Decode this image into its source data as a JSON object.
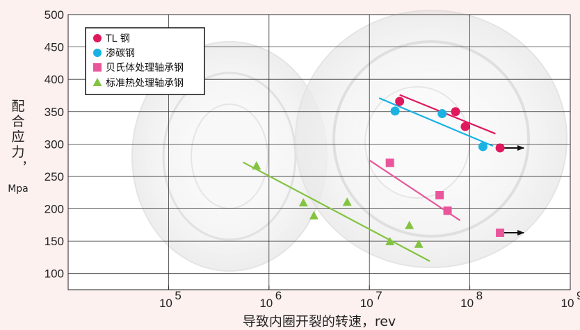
{
  "chart_data": {
    "type": "scatter",
    "title": "",
    "xlabel": "导致内圈开裂的转速，rev",
    "ylabel_chars": [
      "配",
      "合",
      "应",
      "力",
      "，"
    ],
    "ylabel_unit": "Mpa",
    "xscale": "log",
    "xlim": [
      10000,
      1000000000
    ],
    "ylim": [
      75,
      500
    ],
    "yticks": [
      100,
      150,
      200,
      250,
      300,
      350,
      400,
      450,
      500
    ],
    "xticks": [
      {
        "value": 100000,
        "base": "10",
        "exp": "5"
      },
      {
        "value": 1000000,
        "base": "10",
        "exp": "6"
      },
      {
        "value": 10000000,
        "base": "10",
        "exp": "7"
      },
      {
        "value": 100000000,
        "base": "10",
        "exp": "8"
      },
      {
        "value": 1000000000,
        "base": "10",
        "exp": "9"
      }
    ],
    "grid": true,
    "legend_position": "top-left",
    "series": [
      {
        "name": "TL 钢",
        "marker": "circle",
        "color": "#e0185e",
        "points": [
          [
            20000000,
            366
          ],
          [
            72000000,
            350
          ],
          [
            90000000,
            327
          ],
          [
            200000000,
            294
          ]
        ],
        "fit_line": [
          [
            20000000,
            376
          ],
          [
            180000000,
            316
          ]
        ],
        "runout": [
          [
            200000000,
            294
          ]
        ]
      },
      {
        "name": "渗碳钢",
        "marker": "circle",
        "color": "#19b2e3",
        "points": [
          [
            18000000,
            351
          ],
          [
            53000000,
            347
          ],
          [
            135000000,
            296
          ]
        ],
        "fit_line": [
          [
            12500000,
            371
          ],
          [
            170000000,
            297
          ]
        ],
        "runout": []
      },
      {
        "name": "贝氏体处理轴承钢",
        "marker": "square",
        "color": "#ea569b",
        "points": [
          [
            16000000,
            271
          ],
          [
            50000000,
            221
          ],
          [
            60000000,
            197
          ],
          [
            200000000,
            163
          ]
        ],
        "fit_line": [
          [
            10000000,
            275
          ],
          [
            80000000,
            182
          ]
        ],
        "runout": [
          [
            200000000,
            163
          ]
        ]
      },
      {
        "name": "标准热处理轴承钢",
        "marker": "triangle",
        "color": "#83c341",
        "points": [
          [
            750000,
            266
          ],
          [
            2200000,
            209
          ],
          [
            2800000,
            189
          ],
          [
            6000000,
            210
          ],
          [
            16000000,
            149
          ],
          [
            25000000,
            174
          ],
          [
            31000000,
            145
          ]
        ],
        "fit_line": [
          [
            550000,
            272
          ],
          [
            40000000,
            119
          ]
        ],
        "runout": []
      }
    ]
  }
}
